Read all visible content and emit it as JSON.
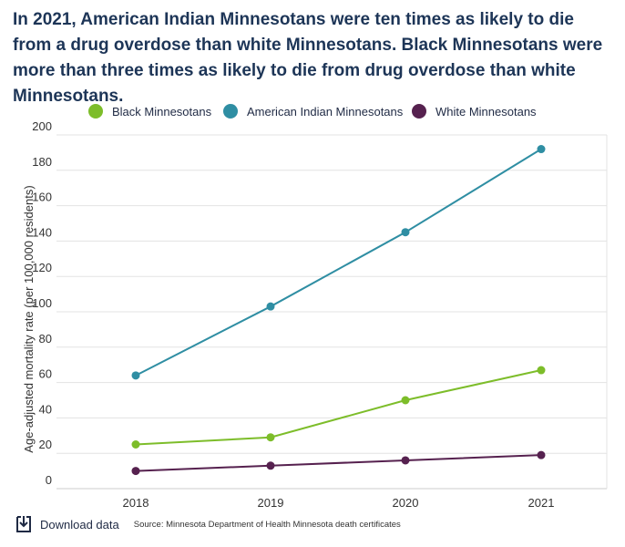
{
  "header": {
    "title": "In 2021, American Indian Minnesotans were ten times as likely to die from a drug overdose than white Minnesotans. Black Minnesotans were more than three times as likely to die from drug overdose than white Minnesotans."
  },
  "footer": {
    "download_label": "Download data",
    "source": "Source: Minnesota Department of Health Minnesota death certificates"
  },
  "icons": {
    "download": "download-icon"
  },
  "chart_data": {
    "type": "line",
    "title": "",
    "xlabel": "",
    "ylabel": "Age-adjusted mortality rate (per 100,000 residents)",
    "x": [
      "2018",
      "2019",
      "2020",
      "2021"
    ],
    "yticks": [
      0,
      20,
      40,
      60,
      80,
      100,
      120,
      140,
      160,
      180,
      200
    ],
    "ylim": [
      0,
      200
    ],
    "grid": true,
    "legend_position": "top",
    "series": [
      {
        "name": "Black Minnesotans",
        "color": "#7dbd2a",
        "values": [
          25,
          29,
          50,
          67
        ]
      },
      {
        "name": "American Indian Minnesotans",
        "color": "#2f8ea3",
        "values": [
          64,
          103,
          145,
          192
        ]
      },
      {
        "name": "White Minnesotans",
        "color": "#56214f",
        "values": [
          10,
          13,
          16,
          19
        ]
      }
    ]
  }
}
